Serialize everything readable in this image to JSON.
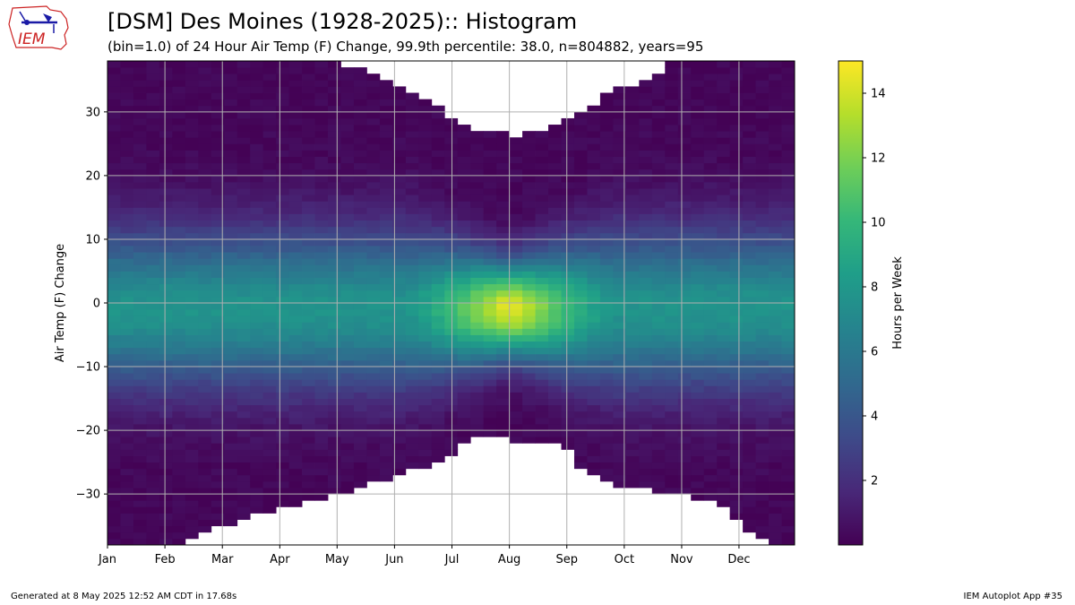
{
  "header": {
    "title": "[DSM] Des Moines (1928-2025):: Histogram",
    "subtitle": "(bin=1.0) of 24 Hour Air Temp (F) Change, 99.9th percentile: 38.0, n=804882, years=95",
    "logo_text": "IEM"
  },
  "footer": {
    "generated": "Generated at 8 May 2025 12:52 AM CDT in 17.68s",
    "app": "IEM Autoplot App #35"
  },
  "colors": {
    "viridis": [
      "#440154",
      "#482878",
      "#3e4a89",
      "#31688e",
      "#26828e",
      "#1f9e89",
      "#35b779",
      "#6ece58",
      "#b5de2b",
      "#fde725"
    ],
    "grid": "#b0b0b0",
    "logo_red": "#cc2222",
    "logo_blue": "#1a1aa6"
  },
  "chart_data": {
    "type": "heatmap",
    "xlabel": "",
    "ylabel": "Air Temp (F) Change",
    "colorbar_label": "Hours per Week",
    "x_tick_labels": [
      "Jan",
      "Feb",
      "Mar",
      "Apr",
      "May",
      "Jun",
      "Jul",
      "Aug",
      "Sep",
      "Oct",
      "Nov",
      "Dec"
    ],
    "y_ticks": [
      -30,
      -20,
      -10,
      0,
      10,
      20,
      30
    ],
    "colorbar_ticks": [
      2,
      4,
      6,
      8,
      10,
      12,
      14
    ],
    "x_range_weeks": [
      1,
      53
    ],
    "ylim": [
      -38,
      38
    ],
    "colorbar_range": [
      0,
      15
    ],
    "bin_width": 1.0,
    "weeks": 53,
    "grid": true,
    "peak": {
      "week_range": [
        27,
        36
      ],
      "y": -1,
      "value": 14.5
    },
    "typical_center_value_winter": 7.5,
    "upper_empty_boundary_by_week": [
      38,
      38,
      38,
      38,
      38,
      38,
      38,
      38,
      38,
      38,
      38,
      38,
      38,
      38,
      38,
      38,
      38,
      38,
      37,
      37,
      36,
      35,
      34,
      33,
      32,
      31,
      29,
      28,
      27,
      27,
      27,
      26,
      27,
      27,
      28,
      29,
      30,
      31,
      33,
      34,
      34,
      35,
      36,
      38,
      38,
      38,
      38,
      38,
      38,
      38,
      38,
      38,
      38
    ],
    "lower_empty_boundary_by_week": [
      -38,
      -38,
      -38,
      -38,
      -38,
      -38,
      -37,
      -36,
      -35,
      -35,
      -34,
      -33,
      -33,
      -32,
      -32,
      -31,
      -31,
      -30,
      -30,
      -29,
      -28,
      -28,
      -27,
      -26,
      -26,
      -25,
      -24,
      -22,
      -21,
      -21,
      -21,
      -22,
      -22,
      -22,
      -22,
      -23,
      -26,
      -27,
      -28,
      -29,
      -29,
      -29,
      -30,
      -30,
      -30,
      -31,
      -31,
      -32,
      -34,
      -36,
      -37,
      -38,
      -38
    ]
  }
}
